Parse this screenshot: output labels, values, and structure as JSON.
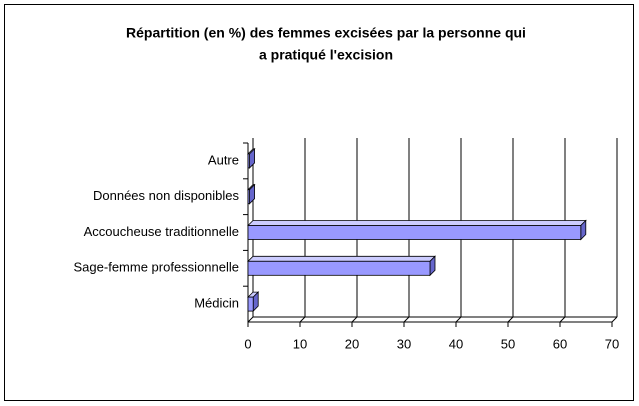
{
  "chart_data": {
    "type": "bar",
    "orientation": "horizontal",
    "title": [
      "Répartition (en %) des femmes excisées par la personne qui",
      "a pratiqué l'excision"
    ],
    "categories": [
      "Autre",
      "Données non disponibles",
      "Accoucheuse traditionnelle",
      "Sage-femme professionnelle",
      "Médicin"
    ],
    "values": [
      0.3,
      0.3,
      64,
      35,
      1
    ],
    "color": "#9999ff",
    "xlim": [
      0,
      70
    ],
    "xticks": [
      0,
      10,
      20,
      30,
      40,
      50,
      60,
      70
    ],
    "grid": true
  }
}
